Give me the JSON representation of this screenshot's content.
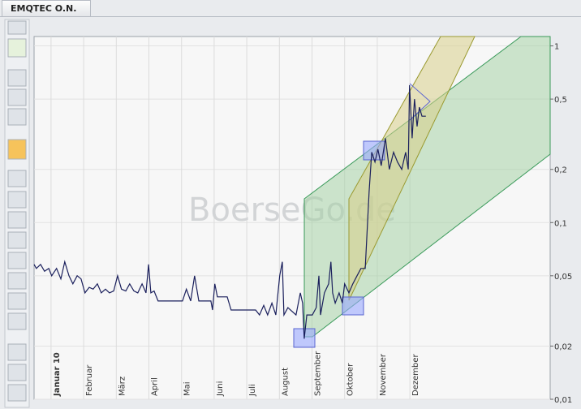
{
  "chart_data": {
    "type": "line",
    "title": "EMQTEC O.N.",
    "watermark": "BoerseGo.de",
    "x": [
      -0.52,
      -0.45,
      -0.32,
      -0.2,
      -0.07,
      0.02,
      0.17,
      0.3,
      0.42,
      0.55,
      0.67,
      0.8,
      0.92,
      1.04,
      1.17,
      1.29,
      1.42,
      1.54,
      1.67,
      1.79,
      1.92,
      2.04,
      2.16,
      2.29,
      2.41,
      2.54,
      2.66,
      2.79,
      2.91,
      2.99,
      3.06,
      3.16,
      3.28,
      3.66,
      4.03,
      4.15,
      4.28,
      4.4,
      4.53,
      4.9,
      4.95,
      5.02,
      5.1,
      5.4,
      5.52,
      5.9,
      6.27,
      6.39,
      6.52,
      6.64,
      6.77,
      6.89,
      7.01,
      7.09,
      7.14,
      7.26,
      7.51,
      7.64,
      7.71,
      7.76,
      7.84,
      8.01,
      8.13,
      8.21,
      8.26,
      8.38,
      8.51,
      8.58,
      8.63,
      8.71,
      8.83,
      8.93,
      9.0,
      9.13,
      9.25,
      9.38,
      9.5,
      9.63,
      9.75,
      9.83,
      9.93,
      10.02,
      10.12,
      10.25,
      10.37,
      10.5,
      10.62,
      10.75,
      10.87,
      10.95,
      10.99,
      11.07,
      11.14,
      11.22,
      11.29,
      11.37,
      11.49
    ],
    "values": [
      0.058,
      0.055,
      0.058,
      0.053,
      0.055,
      0.05,
      0.055,
      0.048,
      0.06,
      0.05,
      0.045,
      0.05,
      0.048,
      0.04,
      0.043,
      0.042,
      0.045,
      0.04,
      0.042,
      0.04,
      0.041,
      0.05,
      0.042,
      0.041,
      0.045,
      0.041,
      0.04,
      0.045,
      0.04,
      0.058,
      0.04,
      0.041,
      0.036,
      0.036,
      0.036,
      0.042,
      0.036,
      0.05,
      0.036,
      0.036,
      0.032,
      0.045,
      0.038,
      0.038,
      0.032,
      0.032,
      0.032,
      0.03,
      0.034,
      0.03,
      0.035,
      0.03,
      0.05,
      0.06,
      0.03,
      0.033,
      0.03,
      0.04,
      0.035,
      0.022,
      0.03,
      0.03,
      0.033,
      0.05,
      0.03,
      0.04,
      0.045,
      0.06,
      0.04,
      0.035,
      0.04,
      0.035,
      0.045,
      0.04,
      0.045,
      0.05,
      0.055,
      0.055,
      0.15,
      0.25,
      0.22,
      0.26,
      0.21,
      0.3,
      0.2,
      0.25,
      0.22,
      0.2,
      0.25,
      0.2,
      0.6,
      0.3,
      0.5,
      0.35,
      0.45,
      0.4,
      0.4
    ],
    "color": "#1a1f5c",
    "xlim": [
      -0.52,
      15.3
    ],
    "xticks": [
      {
        "value": 0,
        "label": "Januar 10"
      },
      {
        "value": 1,
        "label": "Februar"
      },
      {
        "value": 2,
        "label": "März"
      },
      {
        "value": 3,
        "label": "April"
      },
      {
        "value": 4,
        "label": "Mai"
      },
      {
        "value": 5,
        "label": "Juni"
      },
      {
        "value": 6,
        "label": "Juli"
      },
      {
        "value": 7,
        "label": "August"
      },
      {
        "value": 8,
        "label": "September"
      },
      {
        "value": 9,
        "label": "Oktober"
      },
      {
        "value": 10,
        "label": "November"
      },
      {
        "value": 11,
        "label": "Dezember"
      }
    ],
    "ylim": [
      0.01,
      1.13
    ],
    "yticks": [
      {
        "value": 0.01,
        "label": "0,01"
      },
      {
        "value": 0.02,
        "label": "0,02"
      },
      {
        "value": 0.05,
        "label": "0,05"
      },
      {
        "value": 0.1,
        "label": "0,1"
      },
      {
        "value": 0.2,
        "label": "0,2"
      },
      {
        "value": 0.5,
        "label": "0,5"
      },
      1
    ],
    "log_y": true,
    "grid": true
  }
}
